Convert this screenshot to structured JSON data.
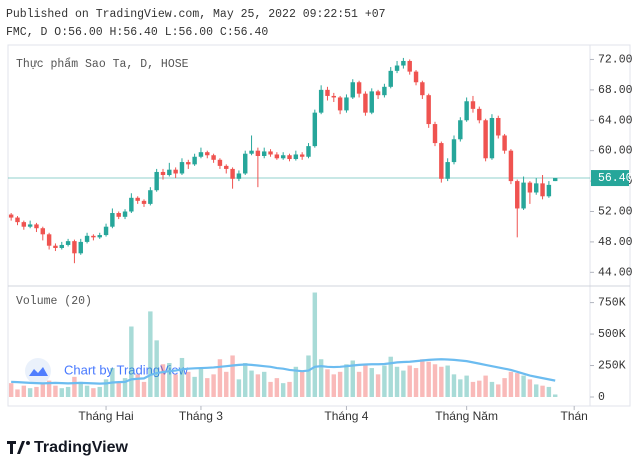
{
  "header": {
    "published": "Published on TradingView.com, May 25, 2022 09:22:51 +07",
    "legend_line": "FMC, D O:56.00 H:56.40 L:56.00 C:56.40"
  },
  "chart_data": {
    "type": "candlestick",
    "title": "Thực phẩm Sao Ta, D, HOSE",
    "up_color": "#26a69a",
    "down_color": "#ef5350",
    "ylim": [
      42.2,
      73.9
    ],
    "yticks": [
      {
        "value": 72,
        "label": "72.00"
      },
      {
        "value": 68,
        "label": "68.00"
      },
      {
        "value": 64,
        "label": "64.00"
      },
      {
        "value": 60,
        "label": "60.00"
      },
      {
        "value": 56,
        "label": "56.00"
      },
      {
        "value": 52,
        "label": "52.00"
      },
      {
        "value": 48,
        "label": "48.00"
      },
      {
        "value": 44,
        "label": "44.00"
      }
    ],
    "last_price": {
      "value": 56.4,
      "label": "56.40"
    },
    "xlim": [
      -0.5,
      91.5
    ],
    "xticks": [
      {
        "value": 15,
        "label": "Tháng Hai"
      },
      {
        "value": 30,
        "label": "Tháng 3"
      },
      {
        "value": 53,
        "label": "Tháng 4"
      },
      {
        "value": 72,
        "label": "Tháng Năm"
      },
      {
        "value": 89,
        "label": "Thán"
      }
    ],
    "candles": [
      [
        51.6,
        51.8,
        50.8,
        51.2
      ],
      [
        51.2,
        51.4,
        50.2,
        50.6
      ],
      [
        50.6,
        50.8,
        49.6,
        50.0
      ],
      [
        50.0,
        50.8,
        49.8,
        50.3
      ],
      [
        50.3,
        50.5,
        49.3,
        49.8
      ],
      [
        49.8,
        50.0,
        48.2,
        49.0
      ],
      [
        49.0,
        49.2,
        47.0,
        47.5
      ],
      [
        47.5,
        47.8,
        46.8,
        47.2
      ],
      [
        47.2,
        48.0,
        47.0,
        47.6
      ],
      [
        47.6,
        48.4,
        47.4,
        48.1
      ],
      [
        48.1,
        48.3,
        45.2,
        46.5
      ],
      [
        46.5,
        48.4,
        46.3,
        48.0
      ],
      [
        48.0,
        49.2,
        47.8,
        48.8
      ],
      [
        48.8,
        49.0,
        48.2,
        48.6
      ],
      [
        48.6,
        49.2,
        48.4,
        48.9
      ],
      [
        48.9,
        50.4,
        48.7,
        50.0
      ],
      [
        50.0,
        52.4,
        49.8,
        51.8
      ],
      [
        51.8,
        52.0,
        51.0,
        51.3
      ],
      [
        51.3,
        52.3,
        51.0,
        52.0
      ],
      [
        52.0,
        54.4,
        51.8,
        53.8
      ],
      [
        53.8,
        54.0,
        53.0,
        53.4
      ],
      [
        53.4,
        53.6,
        52.6,
        53.0
      ],
      [
        53.0,
        55.2,
        52.8,
        54.8
      ],
      [
        54.8,
        57.6,
        54.6,
        57.2
      ],
      [
        57.2,
        57.6,
        56.2,
        56.8
      ],
      [
        56.8,
        58.4,
        56.6,
        57.5
      ],
      [
        57.5,
        57.8,
        56.4,
        57.0
      ],
      [
        57.0,
        59.0,
        56.8,
        58.5
      ],
      [
        58.5,
        58.8,
        57.6,
        58.2
      ],
      [
        58.2,
        59.6,
        58.0,
        59.2
      ],
      [
        59.2,
        60.4,
        59.0,
        59.8
      ],
      [
        59.8,
        60.0,
        59.0,
        59.4
      ],
      [
        59.4,
        59.6,
        58.4,
        58.8
      ],
      [
        58.8,
        59.0,
        57.6,
        58.0
      ],
      [
        58.0,
        58.2,
        57.0,
        57.6
      ],
      [
        57.6,
        57.8,
        55.0,
        56.3
      ],
      [
        56.3,
        57.4,
        56.0,
        57.0
      ],
      [
        57.0,
        60.0,
        56.8,
        59.6
      ],
      [
        59.6,
        62.0,
        59.4,
        60.0
      ],
      [
        60.0,
        60.4,
        55.2,
        59.3
      ],
      [
        59.3,
        60.4,
        59.0,
        59.9
      ],
      [
        59.9,
        60.2,
        59.2,
        59.5
      ],
      [
        59.5,
        59.8,
        58.8,
        59.0
      ],
      [
        59.0,
        59.8,
        58.8,
        59.4
      ],
      [
        59.4,
        59.6,
        58.6,
        58.9
      ],
      [
        58.9,
        60.0,
        58.7,
        59.5
      ],
      [
        59.5,
        59.8,
        58.8,
        59.2
      ],
      [
        59.2,
        61.0,
        59.0,
        60.6
      ],
      [
        60.6,
        65.4,
        60.4,
        65.0
      ],
      [
        65.0,
        68.6,
        64.8,
        68.0
      ],
      [
        68.0,
        68.4,
        66.6,
        67.2
      ],
      [
        67.2,
        67.6,
        66.4,
        67.0
      ],
      [
        67.0,
        67.2,
        64.8,
        65.3
      ],
      [
        65.3,
        67.4,
        65.0,
        67.0
      ],
      [
        67.0,
        69.4,
        66.8,
        69.0
      ],
      [
        69.0,
        69.2,
        67.0,
        67.5
      ],
      [
        67.5,
        67.8,
        64.6,
        65.0
      ],
      [
        65.0,
        68.2,
        64.8,
        67.8
      ],
      [
        67.8,
        68.0,
        66.8,
        67.3
      ],
      [
        67.3,
        68.8,
        67.0,
        68.4
      ],
      [
        68.4,
        71.0,
        68.2,
        70.5
      ],
      [
        70.5,
        71.8,
        70.2,
        71.2
      ],
      [
        71.2,
        72.2,
        70.8,
        71.8
      ],
      [
        71.8,
        72.0,
        70.0,
        70.4
      ],
      [
        70.4,
        70.6,
        68.6,
        69.0
      ],
      [
        69.0,
        69.2,
        66.8,
        67.3
      ],
      [
        67.3,
        67.5,
        63.0,
        63.5
      ],
      [
        63.5,
        63.8,
        60.6,
        61.0
      ],
      [
        61.0,
        61.2,
        55.8,
        56.3
      ],
      [
        56.3,
        59.0,
        56.0,
        58.5
      ],
      [
        58.5,
        62.0,
        58.2,
        61.5
      ],
      [
        61.5,
        64.4,
        61.2,
        64.0
      ],
      [
        64.0,
        67.0,
        63.8,
        66.5
      ],
      [
        66.5,
        67.2,
        65.0,
        65.5
      ],
      [
        65.5,
        65.8,
        63.6,
        64.0
      ],
      [
        64.0,
        64.2,
        58.6,
        59.0
      ],
      [
        59.0,
        64.8,
        58.8,
        64.3
      ],
      [
        64.3,
        64.6,
        61.6,
        62.0
      ],
      [
        62.0,
        62.2,
        59.6,
        60.0
      ],
      [
        60.0,
        60.2,
        55.6,
        56.0
      ],
      [
        56.0,
        56.2,
        48.6,
        52.4
      ],
      [
        52.4,
        56.6,
        52.2,
        55.8
      ],
      [
        55.8,
        56.0,
        53.0,
        54.5
      ],
      [
        54.5,
        56.4,
        54.2,
        55.7
      ],
      [
        55.7,
        56.8,
        53.6,
        54.0
      ],
      [
        54.0,
        56.0,
        53.8,
        55.5
      ],
      [
        56.0,
        56.4,
        56.0,
        56.4
      ]
    ],
    "volume": {
      "label": "Volume (20)",
      "ma_color": "#6cbcf0",
      "ylim": [
        0,
        850000
      ],
      "yticks": [
        0,
        {
          "value": 250000,
          "label": "250K"
        },
        {
          "value": 500000,
          "label": "500K"
        },
        {
          "value": 750000,
          "label": "750K"
        }
      ],
      "values": [
        110000,
        60000,
        90000,
        70000,
        80000,
        100000,
        130000,
        90000,
        70000,
        80000,
        160000,
        120000,
        90000,
        70000,
        80000,
        140000,
        230000,
        120000,
        150000,
        560000,
        180000,
        120000,
        680000,
        450000,
        260000,
        270000,
        180000,
        310000,
        200000,
        160000,
        230000,
        150000,
        180000,
        300000,
        200000,
        330000,
        140000,
        270000,
        210000,
        180000,
        200000,
        120000,
        150000,
        110000,
        120000,
        240000,
        200000,
        330000,
        830000,
        300000,
        220000,
        180000,
        200000,
        260000,
        290000,
        200000,
        260000,
        230000,
        180000,
        250000,
        320000,
        240000,
        210000,
        250000,
        230000,
        300000,
        280000,
        260000,
        240000,
        250000,
        180000,
        140000,
        170000,
        120000,
        130000,
        170000,
        120000,
        100000,
        150000,
        200000,
        190000,
        170000,
        140000,
        100000,
        90000,
        80000,
        20000
      ],
      "ma": [
        120000,
        118000,
        115000,
        112000,
        110000,
        108000,
        110000,
        112000,
        110000,
        108000,
        110000,
        112000,
        110000,
        108000,
        106000,
        108000,
        115000,
        118000,
        120000,
        140000,
        145000,
        148000,
        175000,
        190000,
        198000,
        205000,
        210000,
        220000,
        225000,
        228000,
        230000,
        232000,
        235000,
        240000,
        245000,
        250000,
        255000,
        258000,
        255000,
        250000,
        245000,
        240000,
        230000,
        225000,
        215000,
        210000,
        205000,
        210000,
        240000,
        245000,
        240000,
        238000,
        240000,
        245000,
        250000,
        255000,
        258000,
        260000,
        260000,
        262000,
        268000,
        275000,
        278000,
        280000,
        285000,
        290000,
        295000,
        298000,
        300000,
        298000,
        295000,
        290000,
        285000,
        275000,
        265000,
        255000,
        245000,
        235000,
        225000,
        215000,
        200000,
        185000,
        170000,
        160000,
        150000,
        140000,
        130000
      ]
    },
    "watermark": "Chart by TradingView"
  },
  "footer": {
    "logo": "TradingView"
  }
}
